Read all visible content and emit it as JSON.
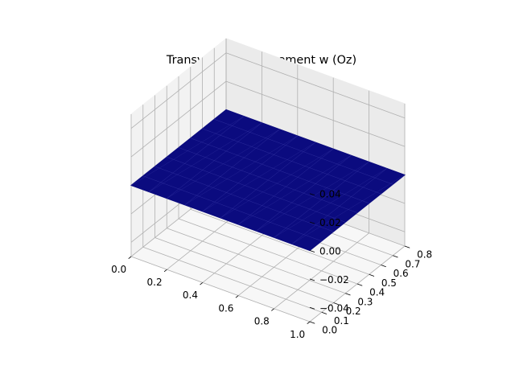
{
  "chart_data": {
    "type": "surface",
    "title": "Transversal Displacement w (Oz)",
    "xlabel": "",
    "ylabel": "",
    "zlabel": "",
    "xlim": [
      0.0,
      1.0
    ],
    "ylim": [
      0.0,
      0.8
    ],
    "zlim": [
      -0.05,
      0.05
    ],
    "x_ticks": [
      "0.0",
      "0.2",
      "0.4",
      "0.6",
      "0.8",
      "1.0"
    ],
    "y_ticks": [
      "0.0",
      "0.1",
      "0.2",
      "0.3",
      "0.4",
      "0.5",
      "0.6",
      "0.7",
      "0.8"
    ],
    "z_ticks": [
      "−0.04",
      "−0.02",
      "0.00",
      "0.02",
      "0.04"
    ],
    "surface": {
      "x_range": [
        0.0,
        1.0
      ],
      "y_range": [
        0.0,
        0.8
      ],
      "z_value": 0.0,
      "mesh_divisions_x": 10,
      "mesh_divisions_y": 8,
      "color": "#0b0b7f"
    },
    "grid": true
  },
  "colors": {
    "pane_left": "#f2f2f2",
    "pane_right": "#ebebeb",
    "pane_floor": "#f7f7f7",
    "grid": "#b0b0b0",
    "surface": "#0b0b7f",
    "surface_lines": "#3a3aa8"
  }
}
